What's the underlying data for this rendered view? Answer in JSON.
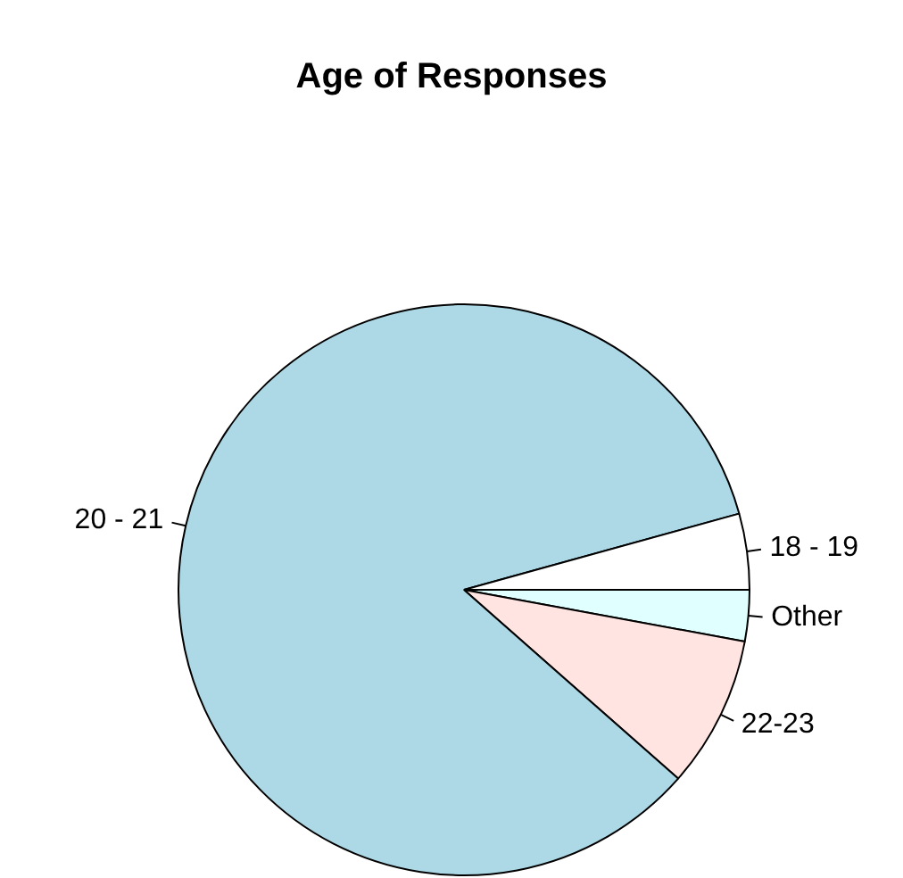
{
  "chart_data": {
    "type": "pie",
    "title": "Age of Responses",
    "categories": [
      "18 - 19",
      "20 - 21",
      "22-23",
      "Other"
    ],
    "values": [
      4.3,
      84.2,
      8.6,
      2.9
    ],
    "colors": [
      "#ffffff",
      "#add8e6",
      "#ffe4e1",
      "#e0ffff"
    ]
  }
}
